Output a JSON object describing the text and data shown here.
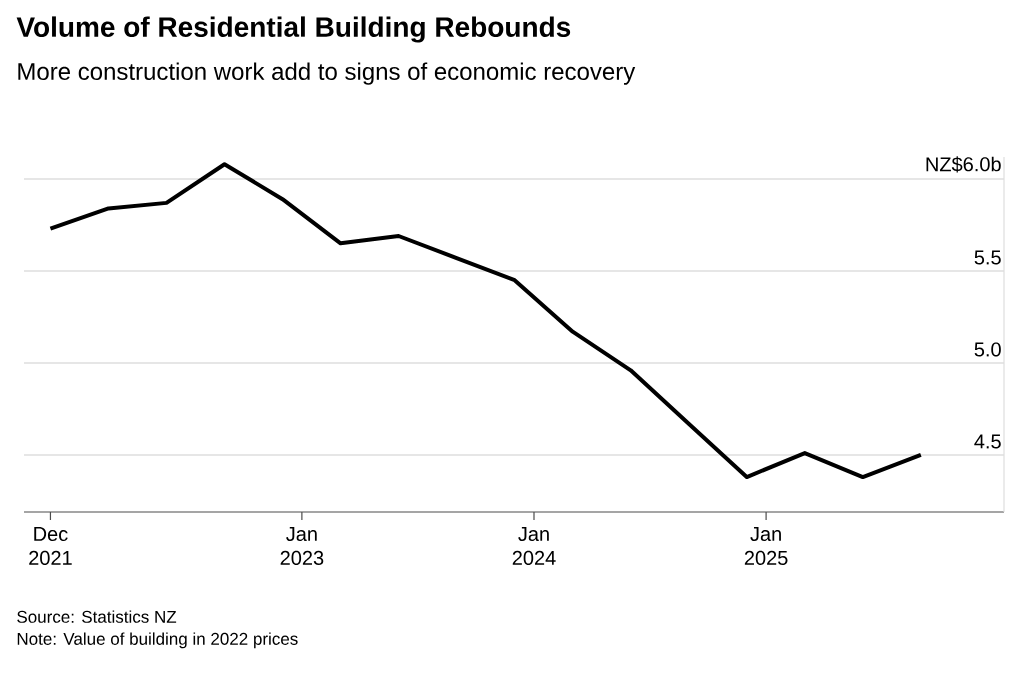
{
  "chart_data": {
    "type": "line",
    "title": "Volume of Residential Building Rebounds",
    "subtitle": "More construction work add to signs of economic recovery",
    "x": [
      "2021-12",
      "2022-03",
      "2022-06",
      "2022-09",
      "2022-12",
      "2023-03",
      "2023-06",
      "2023-09",
      "2023-12",
      "2024-03",
      "2024-06",
      "2024-09",
      "2024-12",
      "2025-03",
      "2025-06",
      "2025-09"
    ],
    "series": [
      {
        "color": "#000000",
        "values": [
          5.73,
          5.84,
          5.87,
          6.08,
          5.89,
          5.65,
          5.69,
          5.57,
          5.45,
          5.17,
          4.96,
          4.67,
          4.38,
          4.51,
          4.38,
          4.5
        ]
      }
    ],
    "xlim": [
      "2021-10-20",
      "2026-01-10"
    ],
    "ylim": [
      4.19,
      6.12
    ],
    "xticks": [
      {
        "value": "2021-12",
        "label": "Dec 2021"
      },
      {
        "value": "2023-01",
        "label": "Jan 2023"
      },
      {
        "value": "2024-01",
        "label": "Jan 2024"
      },
      {
        "value": "2025-01",
        "label": "Jan 2025"
      }
    ],
    "yticks": [
      {
        "value": 4.5,
        "label": "4.5"
      },
      {
        "value": 5.0,
        "label": "5.0"
      },
      {
        "value": 5.5,
        "label": "5.5"
      },
      {
        "value": 6.0,
        "label": "NZ$6.0b"
      }
    ],
    "grid": "y",
    "marker": "none",
    "line_style": "solid",
    "annotations": [
      "Source: Statistics NZ",
      "Note: Value of building in 2022 prices"
    ]
  }
}
